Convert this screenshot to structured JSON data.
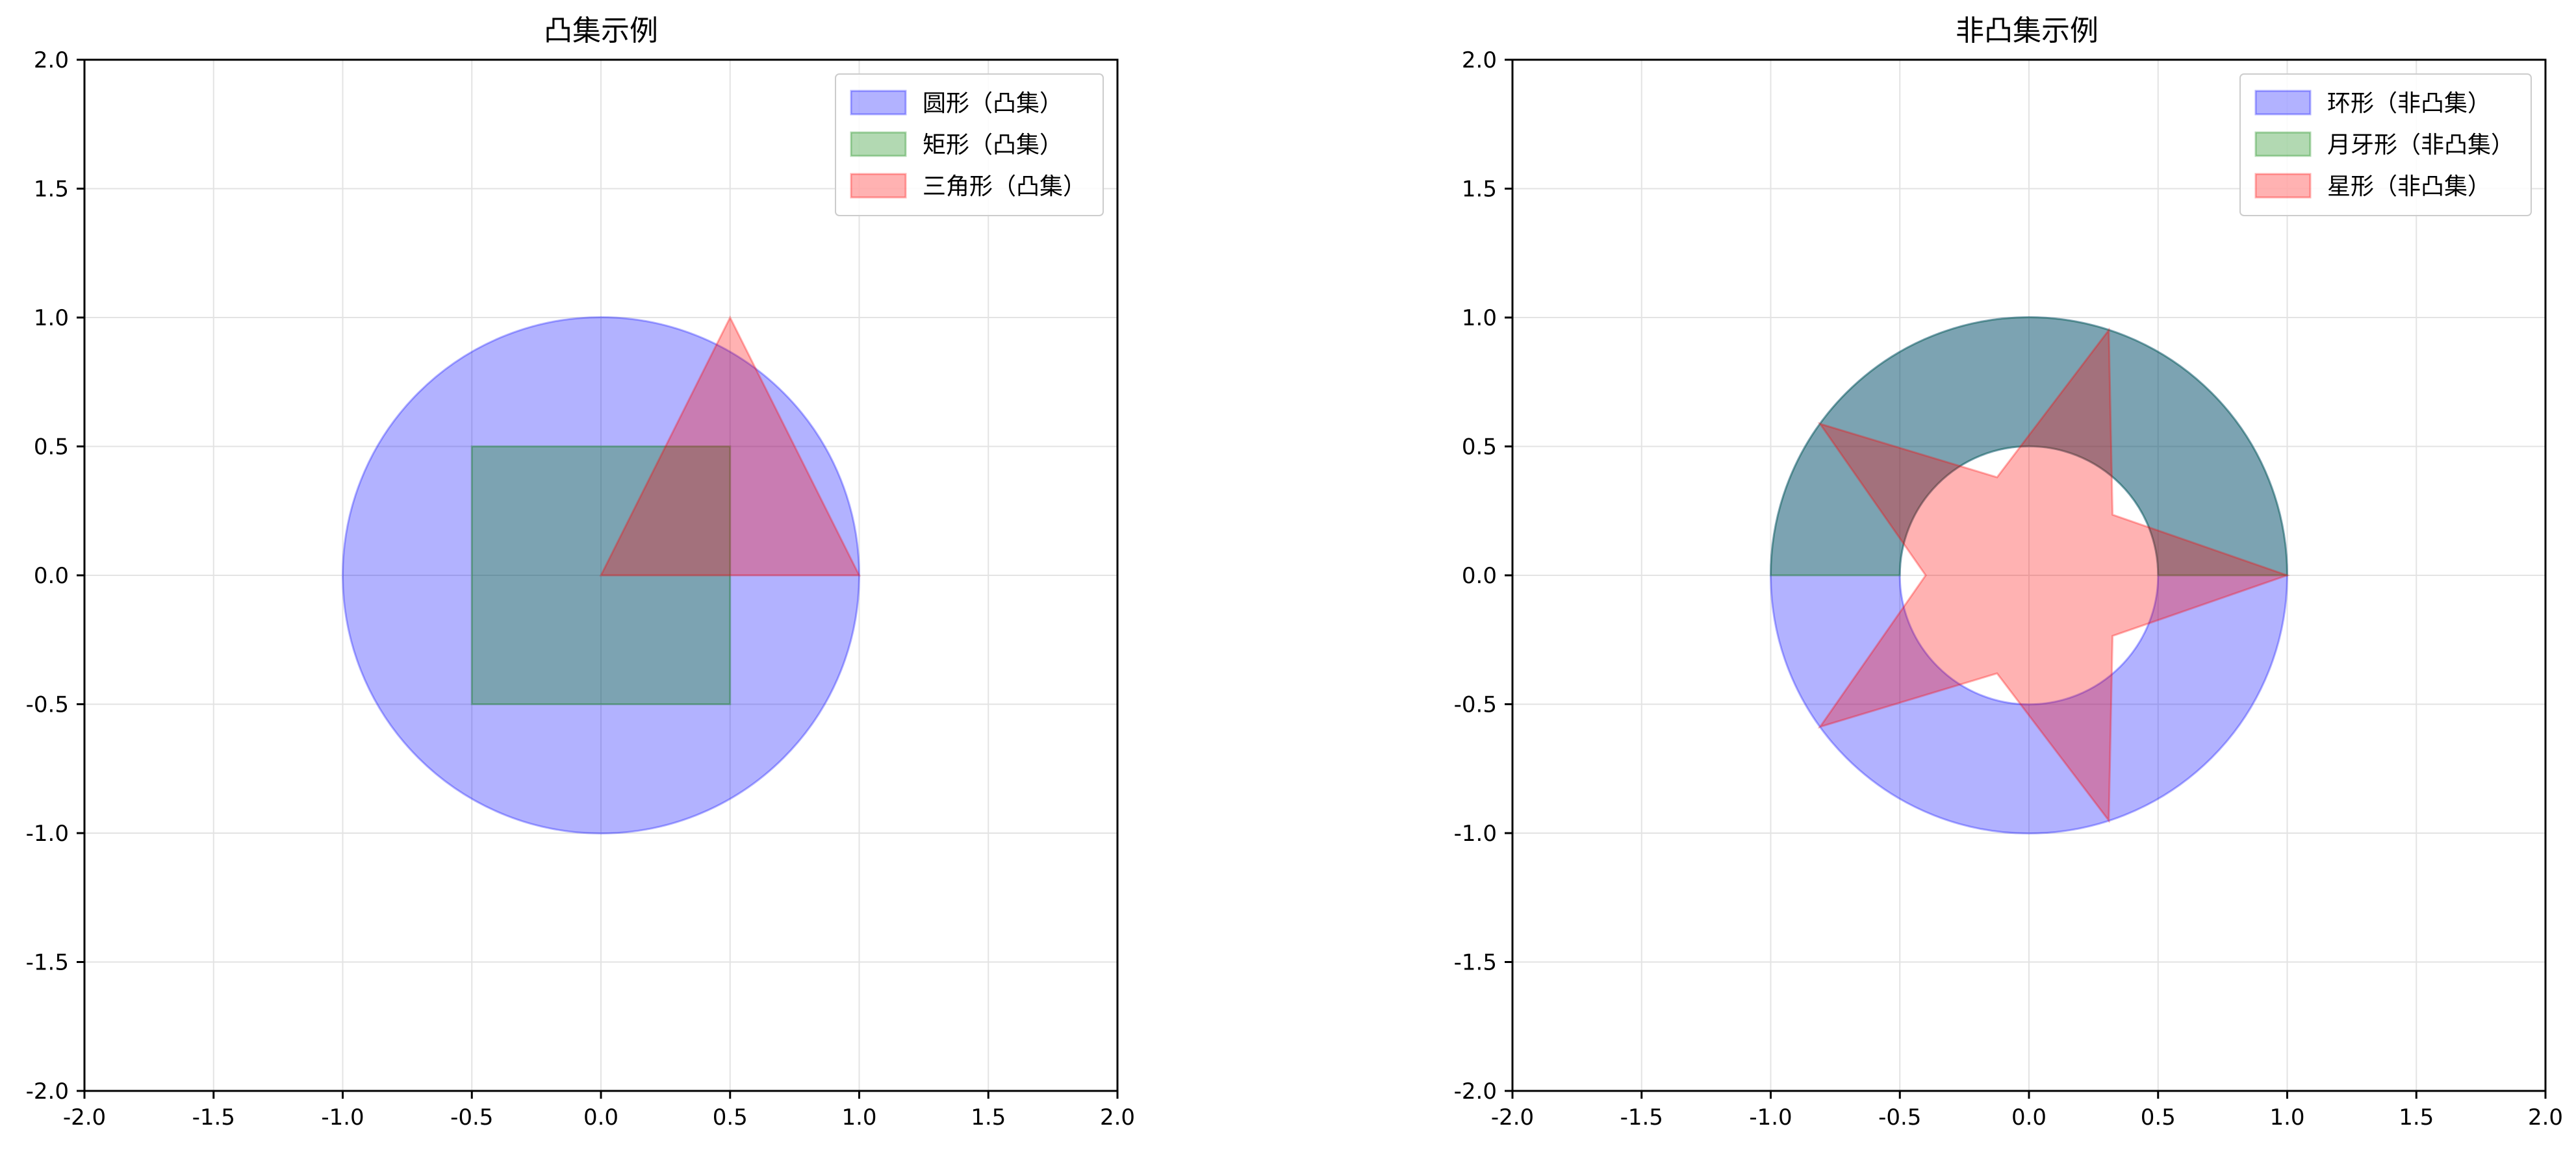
{
  "chart_data": [
    {
      "type": "area",
      "title": "凸集示例",
      "xlabel": "",
      "ylabel": "",
      "xlim": [
        -2.0,
        2.0
      ],
      "ylim": [
        -2.0,
        2.0
      ],
      "x_ticks": [
        -2.0,
        -1.5,
        -1.0,
        -0.5,
        0.0,
        0.5,
        1.0,
        1.5,
        2.0
      ],
      "y_ticks": [
        -2.0,
        -1.5,
        -1.0,
        -0.5,
        0.0,
        0.5,
        1.0,
        1.5,
        2.0
      ],
      "tick_labels": [
        "-2.0",
        "-1.5",
        "-1.0",
        "-0.5",
        "0.0",
        "0.5",
        "1.0",
        "1.5",
        "2.0"
      ],
      "grid": true,
      "legend_position": "top-right",
      "series": [
        {
          "name": "圆形（凸集）",
          "color": "#0000ff",
          "shape": "circle",
          "center": [
            0,
            0
          ],
          "radius": 1.0
        },
        {
          "name": "矩形（凸集）",
          "color": "#008000",
          "shape": "polygon",
          "points": [
            [
              -0.5,
              -0.5
            ],
            [
              0.5,
              -0.5
            ],
            [
              0.5,
              0.5
            ],
            [
              -0.5,
              0.5
            ]
          ]
        },
        {
          "name": "三角形（凸集）",
          "color": "#ff0000",
          "shape": "polygon",
          "points": [
            [
              0,
              0
            ],
            [
              1,
              0
            ],
            [
              0.5,
              1.0
            ]
          ]
        }
      ]
    },
    {
      "type": "area",
      "title": "非凸集示例",
      "xlabel": "",
      "ylabel": "",
      "xlim": [
        -2.0,
        2.0
      ],
      "ylim": [
        -2.0,
        2.0
      ],
      "x_ticks": [
        -2.0,
        -1.5,
        -1.0,
        -0.5,
        0.0,
        0.5,
        1.0,
        1.5,
        2.0
      ],
      "y_ticks": [
        -2.0,
        -1.5,
        -1.0,
        -0.5,
        0.0,
        0.5,
        1.0,
        1.5,
        2.0
      ],
      "tick_labels": [
        "-2.0",
        "-1.5",
        "-1.0",
        "-0.5",
        "0.0",
        "0.5",
        "1.0",
        "1.5",
        "2.0"
      ],
      "grid": true,
      "legend_position": "top-right",
      "series": [
        {
          "name": "环形（非凸集）",
          "color": "#0000ff",
          "shape": "annulus",
          "center": [
            0,
            0
          ],
          "outer_radius": 1.0,
          "inner_radius": 0.5
        },
        {
          "name": "月牙形（非凸集）",
          "color": "#008000",
          "shape": "upper-half-annulus",
          "center": [
            0,
            0
          ],
          "outer_radius": 1.0,
          "inner_radius": 0.5
        },
        {
          "name": "星形（非凸集）",
          "color": "#ff0000",
          "shape": "star",
          "center": [
            0,
            0
          ],
          "outer_radius": 1.0,
          "inner_radius": 0.4,
          "points_count": 5
        }
      ]
    }
  ]
}
